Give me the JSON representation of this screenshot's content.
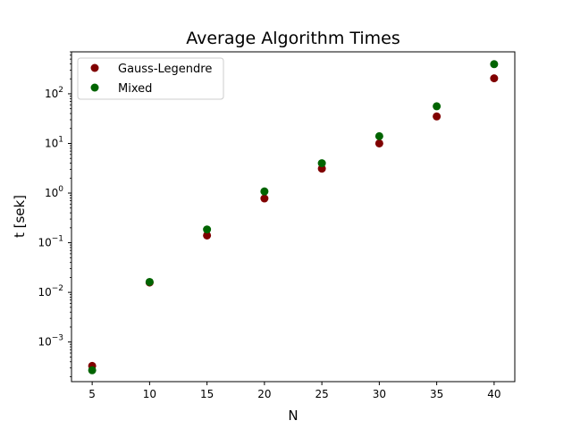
{
  "chart_data": {
    "type": "scatter",
    "title": "Average Algorithm Times",
    "xlabel": "N",
    "ylabel": "t [sek]",
    "xlim": [
      3.2,
      41.8
    ],
    "ylim": [
      0.0001592,
      700
    ],
    "yscale": "log",
    "x_ticks": [
      5,
      10,
      15,
      20,
      25,
      30,
      35,
      40
    ],
    "y_ticks": [
      {
        "value": 0.001,
        "base": "10",
        "exp": "−3"
      },
      {
        "value": 0.01,
        "base": "10",
        "exp": "−2"
      },
      {
        "value": 0.1,
        "base": "10",
        "exp": "−1"
      },
      {
        "value": 1,
        "base": "10",
        "exp": "0"
      },
      {
        "value": 10,
        "base": "10",
        "exp": "1"
      },
      {
        "value": 100,
        "base": "10",
        "exp": "2"
      }
    ],
    "grid": false,
    "legend_position": "top-left",
    "series": [
      {
        "name": "Gauss-Legendre",
        "color": "#800000",
        "x": [
          5,
          10,
          15,
          20,
          25,
          30,
          35,
          40
        ],
        "y": [
          0.00033,
          0.0158,
          0.14,
          0.78,
          3.1,
          10.0,
          35,
          205
        ]
      },
      {
        "name": "Mixed",
        "color": "#006400",
        "x": [
          5,
          10,
          15,
          20,
          25,
          30,
          35,
          40
        ],
        "y": [
          0.00027,
          0.0162,
          0.185,
          1.08,
          4.0,
          14.0,
          56,
          395
        ]
      }
    ]
  }
}
